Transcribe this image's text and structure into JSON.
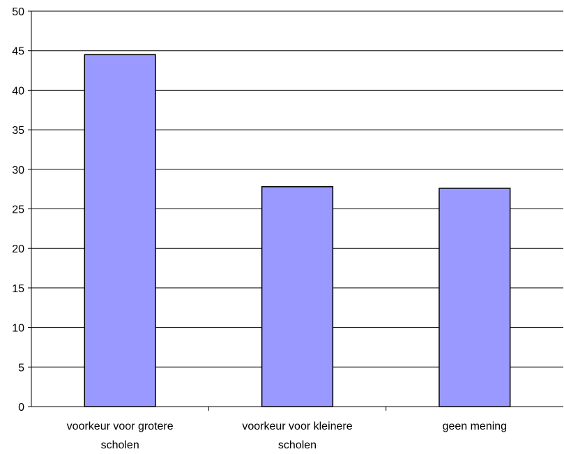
{
  "chart_data": {
    "type": "bar",
    "categories": [
      [
        "voorkeur voor grotere",
        "scholen"
      ],
      [
        "voorkeur voor kleinere",
        "scholen"
      ],
      [
        "geen mening"
      ]
    ],
    "values": [
      44.5,
      27.8,
      27.6
    ],
    "ylim": [
      0,
      50
    ],
    "yticks": [
      0,
      5,
      10,
      15,
      20,
      25,
      30,
      35,
      40,
      45,
      50
    ],
    "grid": true,
    "title": "",
    "xlabel": "",
    "ylabel": "",
    "colors": {
      "bar_fill": "#9999ff",
      "bar_stroke": "#000000",
      "grid": "#000000",
      "axis": "#000000"
    }
  }
}
